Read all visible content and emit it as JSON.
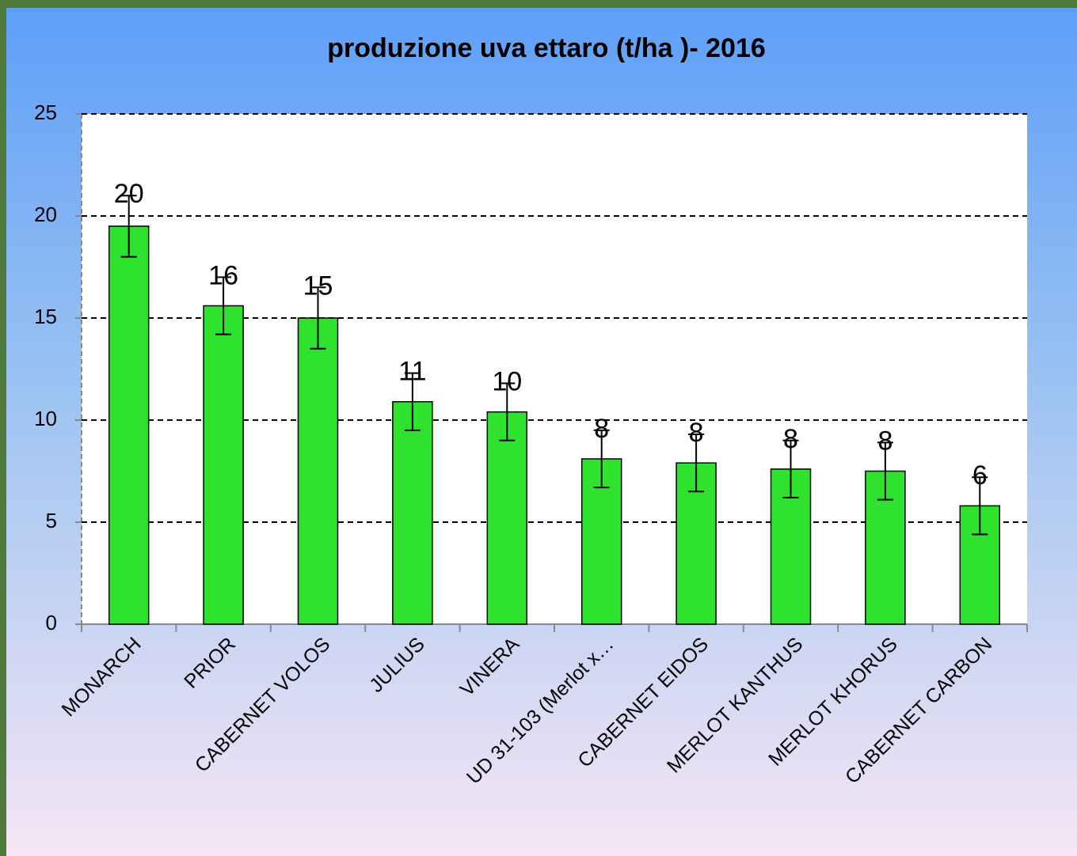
{
  "chart_data": {
    "type": "bar",
    "title": "produzione uva ettaro   (t/ha )- 2016",
    "categories": [
      "MONARCH",
      "PRIOR",
      "CABERNET  VOLOS",
      "JULIUS",
      "VINERA",
      "UD 31-103   (Merlot x…",
      "CABERNET EIDOS",
      "MERLOT KANTHUS",
      "MERLOT KHORUS",
      "CABERNET CARBON"
    ],
    "values": [
      19.5,
      15.6,
      15.0,
      10.9,
      10.4,
      8.1,
      7.9,
      7.6,
      7.5,
      5.8
    ],
    "value_labels": [
      "20",
      "16",
      "15",
      "11",
      "10",
      "8",
      "8",
      "8",
      "8",
      "6"
    ],
    "errors": [
      1.5,
      1.4,
      1.5,
      1.4,
      1.4,
      1.4,
      1.4,
      1.4,
      1.4,
      1.4
    ],
    "color": "#2ee22e",
    "ylim": [
      0,
      25
    ],
    "yticks": [
      0,
      5,
      10,
      15,
      20,
      25
    ],
    "grid": true
  }
}
